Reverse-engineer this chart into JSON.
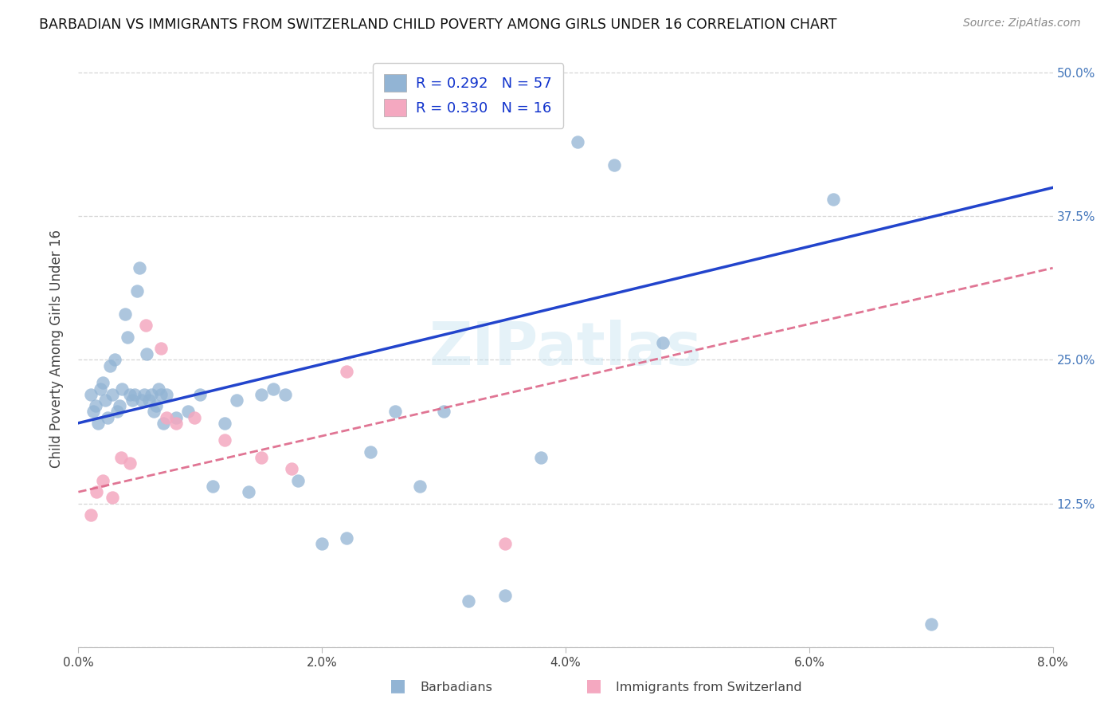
{
  "title": "BARBADIAN VS IMMIGRANTS FROM SWITZERLAND CHILD POVERTY AMONG GIRLS UNDER 16 CORRELATION CHART",
  "source": "Source: ZipAtlas.com",
  "ylabel": "Child Poverty Among Girls Under 16",
  "xlim": [
    0.0,
    8.0
  ],
  "ylim": [
    0.0,
    52.0
  ],
  "xtick_vals": [
    0.0,
    2.0,
    4.0,
    6.0,
    8.0
  ],
  "xtick_labels": [
    "0.0%",
    "2.0%",
    "4.0%",
    "6.0%",
    "8.0%"
  ],
  "ytick_vals": [
    0.0,
    12.5,
    25.0,
    37.5,
    50.0
  ],
  "ytick_labels_right": [
    "",
    "12.5%",
    "25.0%",
    "37.5%",
    "50.0%"
  ],
  "legend_text1": "R = 0.292   N = 57",
  "legend_text2": "R = 0.330   N = 16",
  "legend_label1": "Barbadians",
  "legend_label2": "Immigrants from Switzerland",
  "blue_color": "#92B4D4",
  "pink_color": "#F4A8C0",
  "trend_blue_color": "#2244CC",
  "trend_pink_color": "#DD6688",
  "legend_text_color": "#1133CC",
  "watermark": "ZIPatlas",
  "watermark_color": "#BBDDEE",
  "blue_trend_x0": 0.0,
  "blue_trend_y0": 19.5,
  "blue_trend_x1": 8.0,
  "blue_trend_y1": 40.0,
  "pink_trend_x0": 0.0,
  "pink_trend_y0": 13.5,
  "pink_trend_x1": 8.0,
  "pink_trend_y1": 33.0,
  "blue_scatter_x": [
    0.1,
    0.12,
    0.14,
    0.16,
    0.18,
    0.2,
    0.22,
    0.24,
    0.26,
    0.28,
    0.3,
    0.32,
    0.34,
    0.36,
    0.38,
    0.4,
    0.42,
    0.44,
    0.46,
    0.48,
    0.5,
    0.52,
    0.54,
    0.56,
    0.58,
    0.6,
    0.62,
    0.64,
    0.66,
    0.68,
    0.7,
    0.72,
    0.8,
    0.9,
    1.0,
    1.1,
    1.2,
    1.3,
    1.4,
    1.5,
    1.6,
    1.7,
    1.8,
    2.0,
    2.2,
    2.4,
    2.6,
    2.8,
    3.0,
    3.2,
    3.5,
    3.8,
    4.1,
    4.4,
    4.8,
    6.2,
    7.0
  ],
  "blue_scatter_y": [
    22.0,
    20.5,
    21.0,
    19.5,
    22.5,
    23.0,
    21.5,
    20.0,
    24.5,
    22.0,
    25.0,
    20.5,
    21.0,
    22.5,
    29.0,
    27.0,
    22.0,
    21.5,
    22.0,
    31.0,
    33.0,
    21.5,
    22.0,
    25.5,
    21.5,
    22.0,
    20.5,
    21.0,
    22.5,
    22.0,
    19.5,
    22.0,
    20.0,
    20.5,
    22.0,
    14.0,
    19.5,
    21.5,
    13.5,
    22.0,
    22.5,
    22.0,
    14.5,
    9.0,
    9.5,
    17.0,
    20.5,
    14.0,
    20.5,
    4.0,
    4.5,
    16.5,
    44.0,
    42.0,
    26.5,
    39.0,
    2.0
  ],
  "pink_scatter_x": [
    0.1,
    0.15,
    0.2,
    0.28,
    0.35,
    0.42,
    0.55,
    0.68,
    0.72,
    0.8,
    0.95,
    1.2,
    1.5,
    1.75,
    2.2,
    3.5
  ],
  "pink_scatter_y": [
    11.5,
    13.5,
    14.5,
    13.0,
    16.5,
    16.0,
    28.0,
    26.0,
    20.0,
    19.5,
    20.0,
    18.0,
    16.5,
    15.5,
    24.0,
    9.0
  ]
}
